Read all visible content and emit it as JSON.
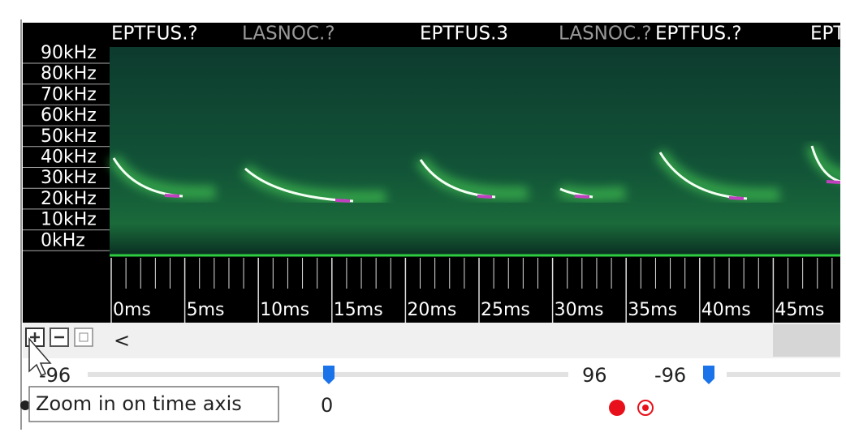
{
  "species_labels": [
    "EPTFUS.?",
    "LASNOC.?",
    "EPTFUS.3",
    "LASNOC.?",
    "EPTFUS.?",
    "EPT"
  ],
  "frequency_axis": {
    "labels": [
      "90kHz",
      "80kHz",
      "70kHz",
      "60kHz",
      "50kHz",
      "40kHz",
      "30kHz",
      "20kHz",
      "10kHz",
      "0kHz"
    ]
  },
  "time_axis": {
    "labels": [
      "0ms",
      "5ms",
      "10ms",
      "15ms",
      "20ms",
      "25ms",
      "30ms",
      "35ms",
      "40ms",
      "45ms"
    ]
  },
  "toolbar": {
    "scroll_left": "<"
  },
  "sliders": {
    "left_min": "-96",
    "left_max": "96",
    "right_min": "-96",
    "value": "0"
  },
  "tooltip": "Zoom in on time axis"
}
